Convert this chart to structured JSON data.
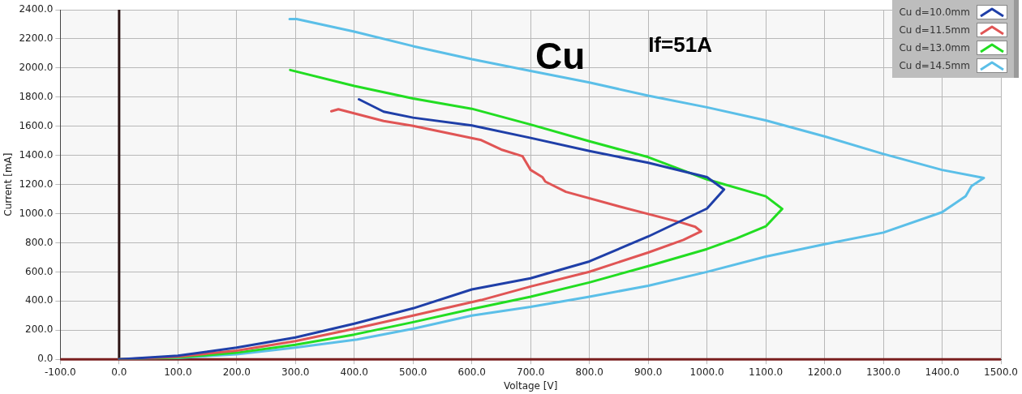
{
  "chart_data": {
    "type": "line",
    "xlabel": "Voltage [V]",
    "ylabel": "Current [mA]",
    "annotations": [
      "Cu",
      "If=51A"
    ],
    "xlim": [
      -100,
      1500
    ],
    "xticks": [
      {
        "value": -100,
        "label": "-100.0"
      },
      {
        "value": 0,
        "label": "0.0"
      },
      {
        "value": 100,
        "label": "100.0"
      },
      {
        "value": 200,
        "label": "200.0"
      },
      {
        "value": 300,
        "label": "300.0"
      },
      {
        "value": 400,
        "label": "400.0"
      },
      {
        "value": 500,
        "label": "500.0"
      },
      {
        "value": 600,
        "label": "600.0"
      },
      {
        "value": 700,
        "label": "700.0"
      },
      {
        "value": 800,
        "label": "800.0"
      },
      {
        "value": 900,
        "label": "900.0"
      },
      {
        "value": 1000,
        "label": "1000.0"
      },
      {
        "value": 1100,
        "label": "1100.0"
      },
      {
        "value": 1200,
        "label": "1200.0"
      },
      {
        "value": 1300,
        "label": "1300.0"
      },
      {
        "value": 1400,
        "label": "1400.0"
      },
      {
        "value": 1500,
        "label": "1500.0"
      }
    ],
    "ylim": [
      0,
      2400
    ],
    "yticks": [
      {
        "value": 0,
        "label": "0.0"
      },
      {
        "value": 200,
        "label": "200.0"
      },
      {
        "value": 400,
        "label": "400.0"
      },
      {
        "value": 600,
        "label": "600.0"
      },
      {
        "value": 800,
        "label": "800.0"
      },
      {
        "value": 1000,
        "label": "1000.0"
      },
      {
        "value": 1200,
        "label": "1200.0"
      },
      {
        "value": 1400,
        "label": "1400.0"
      },
      {
        "value": 1600,
        "label": "1600.0"
      },
      {
        "value": 1800,
        "label": "1800.0"
      },
      {
        "value": 2000,
        "label": "2000.0"
      },
      {
        "value": 2200,
        "label": "2200.0"
      },
      {
        "value": 2400,
        "label": "2400.0"
      }
    ],
    "grid": true,
    "legend": "top right",
    "marker": "none",
    "line_style": "solid",
    "ref_lines": [
      {
        "axis": "x",
        "value": 0,
        "color": "#2b1414"
      },
      {
        "axis": "y",
        "value": 0,
        "color": "#7a1f1f"
      }
    ],
    "series": [
      {
        "name": "Cu d=10.0mm",
        "color": "#1f3fa8",
        "x": [
          0,
          100,
          200,
          300,
          400,
          500,
          600,
          700,
          800,
          900,
          1000,
          1029,
          1000,
          900,
          800,
          700,
          600,
          500,
          450,
          408
        ],
        "values": [
          0,
          25,
          80,
          150,
          245,
          350,
          480,
          556,
          672,
          843,
          1035,
          1166,
          1251,
          1349,
          1430,
          1520,
          1605,
          1659,
          1700,
          1785
        ]
      },
      {
        "name": "Cu d=11.5mm",
        "color": "#e05555",
        "x": [
          0,
          100,
          200,
          300,
          400,
          500,
          616,
          700,
          800,
          900,
          960,
          990,
          980,
          958,
          850,
          760,
          725,
          720,
          700,
          686,
          650,
          616,
          500,
          450,
          373,
          361
        ],
        "values": [
          0,
          18,
          60,
          125,
          210,
          300,
          407,
          500,
          601,
          733,
          820,
          878,
          910,
          937,
          1050,
          1150,
          1220,
          1251,
          1300,
          1395,
          1440,
          1505,
          1603,
          1636,
          1717,
          1703
        ]
      },
      {
        "name": "Cu d=13.0mm",
        "color": "#22dd22",
        "x": [
          0,
          100,
          200,
          300,
          400,
          500,
          600,
          700,
          800,
          900,
          1000,
          1050,
          1100,
          1128,
          1100,
          1000,
          900,
          800,
          700,
          600,
          500,
          400,
          291
        ],
        "values": [
          0,
          12,
          45,
          100,
          170,
          255,
          345,
          430,
          528,
          640,
          757,
          830,
          913,
          1033,
          1119,
          1235,
          1388,
          1497,
          1612,
          1720,
          1791,
          1877,
          1986
        ]
      },
      {
        "name": "Cu d=14.5mm",
        "color": "#5bbfe8",
        "x": [
          0,
          100,
          200,
          300,
          405,
          500,
          600,
          700,
          800,
          900,
          1000,
          1100,
          1200,
          1300,
          1400,
          1440,
          1450,
          1471,
          1400,
          1300,
          1200,
          1100,
          1000,
          900,
          800,
          700,
          600,
          500,
          400,
          302,
          290
        ],
        "values": [
          0,
          10,
          35,
          80,
          136,
          210,
          300,
          360,
          430,
          505,
          600,
          705,
          790,
          870,
          1010,
          1120,
          1190,
          1245,
          1300,
          1410,
          1530,
          1640,
          1730,
          1810,
          1900,
          1980,
          2060,
          2150,
          2250,
          2336,
          2336
        ]
      }
    ]
  }
}
